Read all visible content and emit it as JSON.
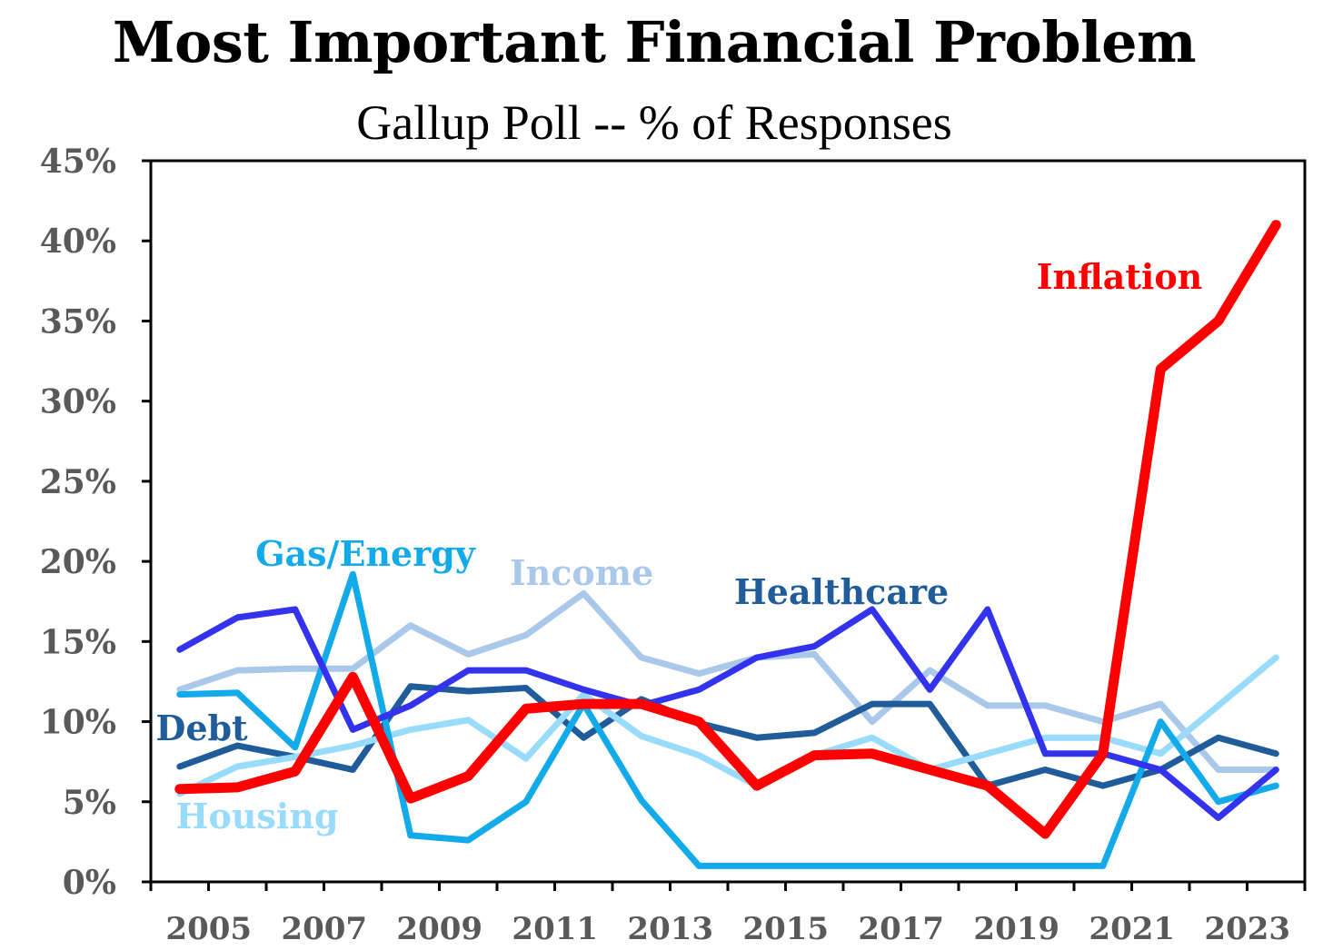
{
  "chart_data": {
    "type": "line",
    "title": "Most Important Financial Problem",
    "subtitle": "Gallup Poll -- % of Responses",
    "xlabel": "",
    "ylabel": "",
    "ylim": [
      0,
      45
    ],
    "xlim": [
      2004.5,
      2024.5
    ],
    "y_ticks": [
      0,
      5,
      10,
      15,
      20,
      25,
      30,
      35,
      40,
      45
    ],
    "y_tick_labels": [
      "0%",
      "5%",
      "10%",
      "15%",
      "20%",
      "25%",
      "30%",
      "35%",
      "40%",
      "45%"
    ],
    "x_tick_labels": [
      "2005",
      "2007",
      "2009",
      "2011",
      "2013",
      "2015",
      "2017",
      "2019",
      "2021",
      "2023"
    ],
    "x": [
      2005,
      2006,
      2007,
      2008,
      2009,
      2010,
      2011,
      2012,
      2013,
      2014,
      2015,
      2016,
      2017,
      2018,
      2019,
      2020,
      2021,
      2022,
      2023,
      2024
    ],
    "grid": false,
    "legend": "inline labels",
    "series": [
      {
        "name": "Income",
        "color": "#A9C8EA",
        "values": [
          12,
          13.2,
          13.3,
          13.3,
          16,
          14.2,
          15.4,
          18,
          14,
          13,
          14,
          14.2,
          10,
          13.2,
          11,
          11,
          10,
          11.1,
          7,
          7
        ]
      },
      {
        "name": "Debt",
        "color": "#1F5C99",
        "values": [
          7.2,
          8.5,
          7.8,
          7,
          12.2,
          11.9,
          12.1,
          9,
          11.4,
          9.9,
          9,
          9.3,
          11.1,
          11.1,
          6,
          7,
          6,
          7,
          9,
          8
        ]
      },
      {
        "name": "Housing",
        "color": "#99DBFA",
        "values": [
          5.5,
          7.2,
          7.8,
          8.5,
          9.5,
          10.1,
          7.7,
          11.7,
          9.1,
          7.9,
          6,
          7.9,
          9,
          7,
          8,
          9,
          9,
          8,
          11,
          14
        ]
      },
      {
        "name": "Gas/Energy",
        "color": "#12AAE8",
        "values": [
          11.7,
          11.8,
          8.4,
          19.2,
          2.9,
          2.6,
          5,
          11.1,
          5.1,
          1,
          1,
          1,
          1,
          1,
          1,
          1,
          1,
          10,
          5,
          6
        ]
      },
      {
        "name": "Healthcare",
        "color": "#3333EE",
        "values": [
          14.5,
          16.5,
          17,
          9.5,
          11,
          13.2,
          13.2,
          12,
          11,
          12,
          14,
          14.7,
          17,
          12,
          17,
          8,
          8,
          7,
          4,
          7
        ]
      },
      {
        "name": "Inflation",
        "color": "#FF0000",
        "values": [
          5.8,
          5.9,
          6.9,
          12.8,
          5.2,
          6.6,
          10.8,
          11.1,
          11.1,
          10,
          6,
          7.9,
          8,
          7,
          6,
          3,
          8,
          32,
          35,
          41
        ]
      }
    ],
    "labels": [
      {
        "text": "Inflation",
        "color": "#FF0000"
      },
      {
        "text": "Healthcare",
        "color": "#1F5C99"
      },
      {
        "text": "Income",
        "color": "#A9C8EA"
      },
      {
        "text": "Gas/Energy",
        "color": "#12AAE8"
      },
      {
        "text": "Debt",
        "color": "#1F5C99"
      },
      {
        "text": "Housing",
        "color": "#99DBFA"
      }
    ]
  }
}
